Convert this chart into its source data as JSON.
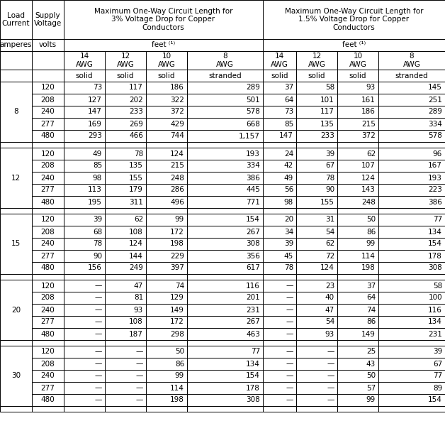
{
  "title_3pct": "Maximum One-Way Circuit Length for\n3% Voltage Drop for Copper\nConductors",
  "title_15pct": "Maximum One-Way Circuit Length for\n1.5% Voltage Drop for Copper\nConductors",
  "col0_header": "Load\nCurrent",
  "col1_header": "Supply\nVoltage",
  "feet_label": "feet ¹",
  "awg_labels": [
    "14\nAWG",
    "12\nAWG",
    "10\nAWG",
    "8\nAWG",
    "14\nAWG",
    "12\nAWG",
    "10\nAWG",
    "8\nAWG"
  ],
  "conductor_types": [
    "solid",
    "solid",
    "solid",
    "stranded",
    "solid",
    "solid",
    "solid",
    "stranded"
  ],
  "units_row": [
    "amperes",
    "volts"
  ],
  "load_groups": [
    {
      "load": "8",
      "rows": [
        {
          "voltage": "120",
          "d3": [
            "73",
            "117",
            "186",
            "289"
          ],
          "d15": [
            "37",
            "58",
            "93",
            "145"
          ]
        },
        {
          "voltage": "208",
          "d3": [
            "127",
            "202",
            "322",
            "501"
          ],
          "d15": [
            "64",
            "101",
            "161",
            "251"
          ]
        },
        {
          "voltage": "240",
          "d3": [
            "147",
            "233",
            "372",
            "578"
          ],
          "d15": [
            "73",
            "117",
            "186",
            "289"
          ]
        },
        {
          "voltage": "277",
          "d3": [
            "169",
            "269",
            "429",
            "668"
          ],
          "d15": [
            "85",
            "135",
            "215",
            "334"
          ]
        },
        {
          "voltage": "480",
          "d3": [
            "293",
            "466",
            "744",
            "1,157"
          ],
          "d15": [
            "147",
            "233",
            "372",
            "578"
          ]
        }
      ]
    },
    {
      "load": "12",
      "rows": [
        {
          "voltage": "120",
          "d3": [
            "49",
            "78",
            "124",
            "193"
          ],
          "d15": [
            "24",
            "39",
            "62",
            "96"
          ]
        },
        {
          "voltage": "208",
          "d3": [
            "85",
            "135",
            "215",
            "334"
          ],
          "d15": [
            "42",
            "67",
            "107",
            "167"
          ]
        },
        {
          "voltage": "240",
          "d3": [
            "98",
            "155",
            "248",
            "386"
          ],
          "d15": [
            "49",
            "78",
            "124",
            "193"
          ]
        },
        {
          "voltage": "277",
          "d3": [
            "113",
            "179",
            "286",
            "445"
          ],
          "d15": [
            "56",
            "90",
            "143",
            "223"
          ]
        },
        {
          "voltage": "480",
          "d3": [
            "195",
            "311",
            "496",
            "771"
          ],
          "d15": [
            "98",
            "155",
            "248",
            "386"
          ]
        }
      ]
    },
    {
      "load": "15",
      "rows": [
        {
          "voltage": "120",
          "d3": [
            "39",
            "62",
            "99",
            "154"
          ],
          "d15": [
            "20",
            "31",
            "50",
            "77"
          ]
        },
        {
          "voltage": "208",
          "d3": [
            "68",
            "108",
            "172",
            "267"
          ],
          "d15": [
            "34",
            "54",
            "86",
            "134"
          ]
        },
        {
          "voltage": "240",
          "d3": [
            "78",
            "124",
            "198",
            "308"
          ],
          "d15": [
            "39",
            "62",
            "99",
            "154"
          ]
        },
        {
          "voltage": "277",
          "d3": [
            "90",
            "144",
            "229",
            "356"
          ],
          "d15": [
            "45",
            "72",
            "114",
            "178"
          ]
        },
        {
          "voltage": "480",
          "d3": [
            "156",
            "249",
            "397",
            "617"
          ],
          "d15": [
            "78",
            "124",
            "198",
            "308"
          ]
        }
      ]
    },
    {
      "load": "20",
      "rows": [
        {
          "voltage": "120",
          "d3": [
            "—",
            "47",
            "74",
            "116"
          ],
          "d15": [
            "—",
            "23",
            "37",
            "58"
          ]
        },
        {
          "voltage": "208",
          "d3": [
            "—",
            "81",
            "129",
            "201"
          ],
          "d15": [
            "—",
            "40",
            "64",
            "100"
          ]
        },
        {
          "voltage": "240",
          "d3": [
            "—",
            "93",
            "149",
            "231"
          ],
          "d15": [
            "—",
            "47",
            "74",
            "116"
          ]
        },
        {
          "voltage": "277",
          "d3": [
            "—",
            "108",
            "172",
            "267"
          ],
          "d15": [
            "—",
            "54",
            "86",
            "134"
          ]
        },
        {
          "voltage": "480",
          "d3": [
            "—",
            "187",
            "298",
            "463"
          ],
          "d15": [
            "—",
            "93",
            "149",
            "231"
          ]
        }
      ]
    },
    {
      "load": "30",
      "rows": [
        {
          "voltage": "120",
          "d3": [
            "—",
            "—",
            "50",
            "77"
          ],
          "d15": [
            "—",
            "—",
            "25",
            "39"
          ]
        },
        {
          "voltage": "208",
          "d3": [
            "—",
            "—",
            "86",
            "134"
          ],
          "d15": [
            "—",
            "—",
            "43",
            "67"
          ]
        },
        {
          "voltage": "240",
          "d3": [
            "—",
            "—",
            "99",
            "154"
          ],
          "d15": [
            "—",
            "—",
            "50",
            "77"
          ]
        },
        {
          "voltage": "277",
          "d3": [
            "—",
            "—",
            "114",
            "178"
          ],
          "d15": [
            "—",
            "—",
            "57",
            "89"
          ]
        },
        {
          "voltage": "480",
          "d3": [
            "—",
            "—",
            "198",
            "308"
          ],
          "d15": [
            "—",
            "—",
            "99",
            "154"
          ]
        }
      ]
    }
  ],
  "bg_color": "#ffffff",
  "line_color": "#000000",
  "text_color": "#000000",
  "header_fontsize": 7.5,
  "cell_fontsize": 7.5
}
